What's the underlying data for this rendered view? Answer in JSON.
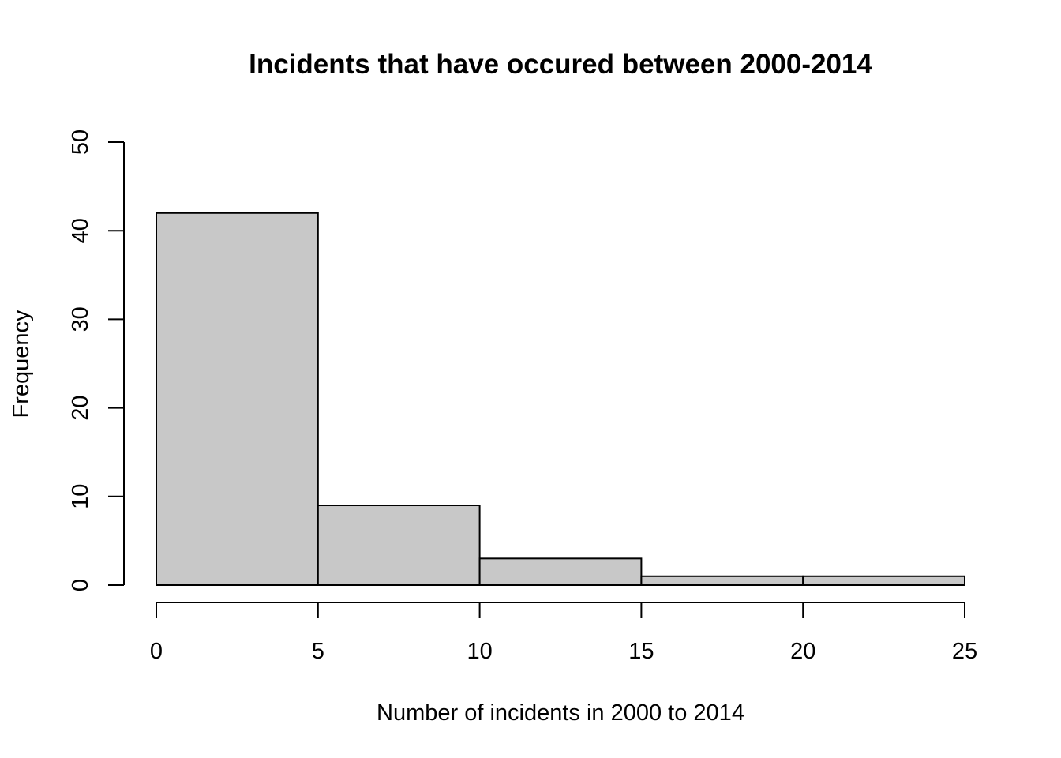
{
  "chart_data": {
    "type": "bar",
    "title": "Incidents that have occured between 2000-2014",
    "xlabel": "Number of incidents in 2000 to 2014",
    "ylabel": "Frequency",
    "bins": [
      {
        "from": 0,
        "to": 5,
        "count": 42
      },
      {
        "from": 5,
        "to": 10,
        "count": 9
      },
      {
        "from": 10,
        "to": 15,
        "count": 3
      },
      {
        "from": 15,
        "to": 20,
        "count": 1
      },
      {
        "from": 20,
        "to": 25,
        "count": 1
      }
    ],
    "xlim": [
      0,
      25
    ],
    "ylim": [
      0,
      50
    ],
    "x_ticks": [
      0,
      5,
      10,
      15,
      20,
      25
    ],
    "y_ticks": [
      0,
      10,
      20,
      30,
      40,
      50
    ],
    "grid": false,
    "colors": {
      "bar_fill": "#c8c8c8",
      "bar_stroke": "#000000"
    }
  }
}
